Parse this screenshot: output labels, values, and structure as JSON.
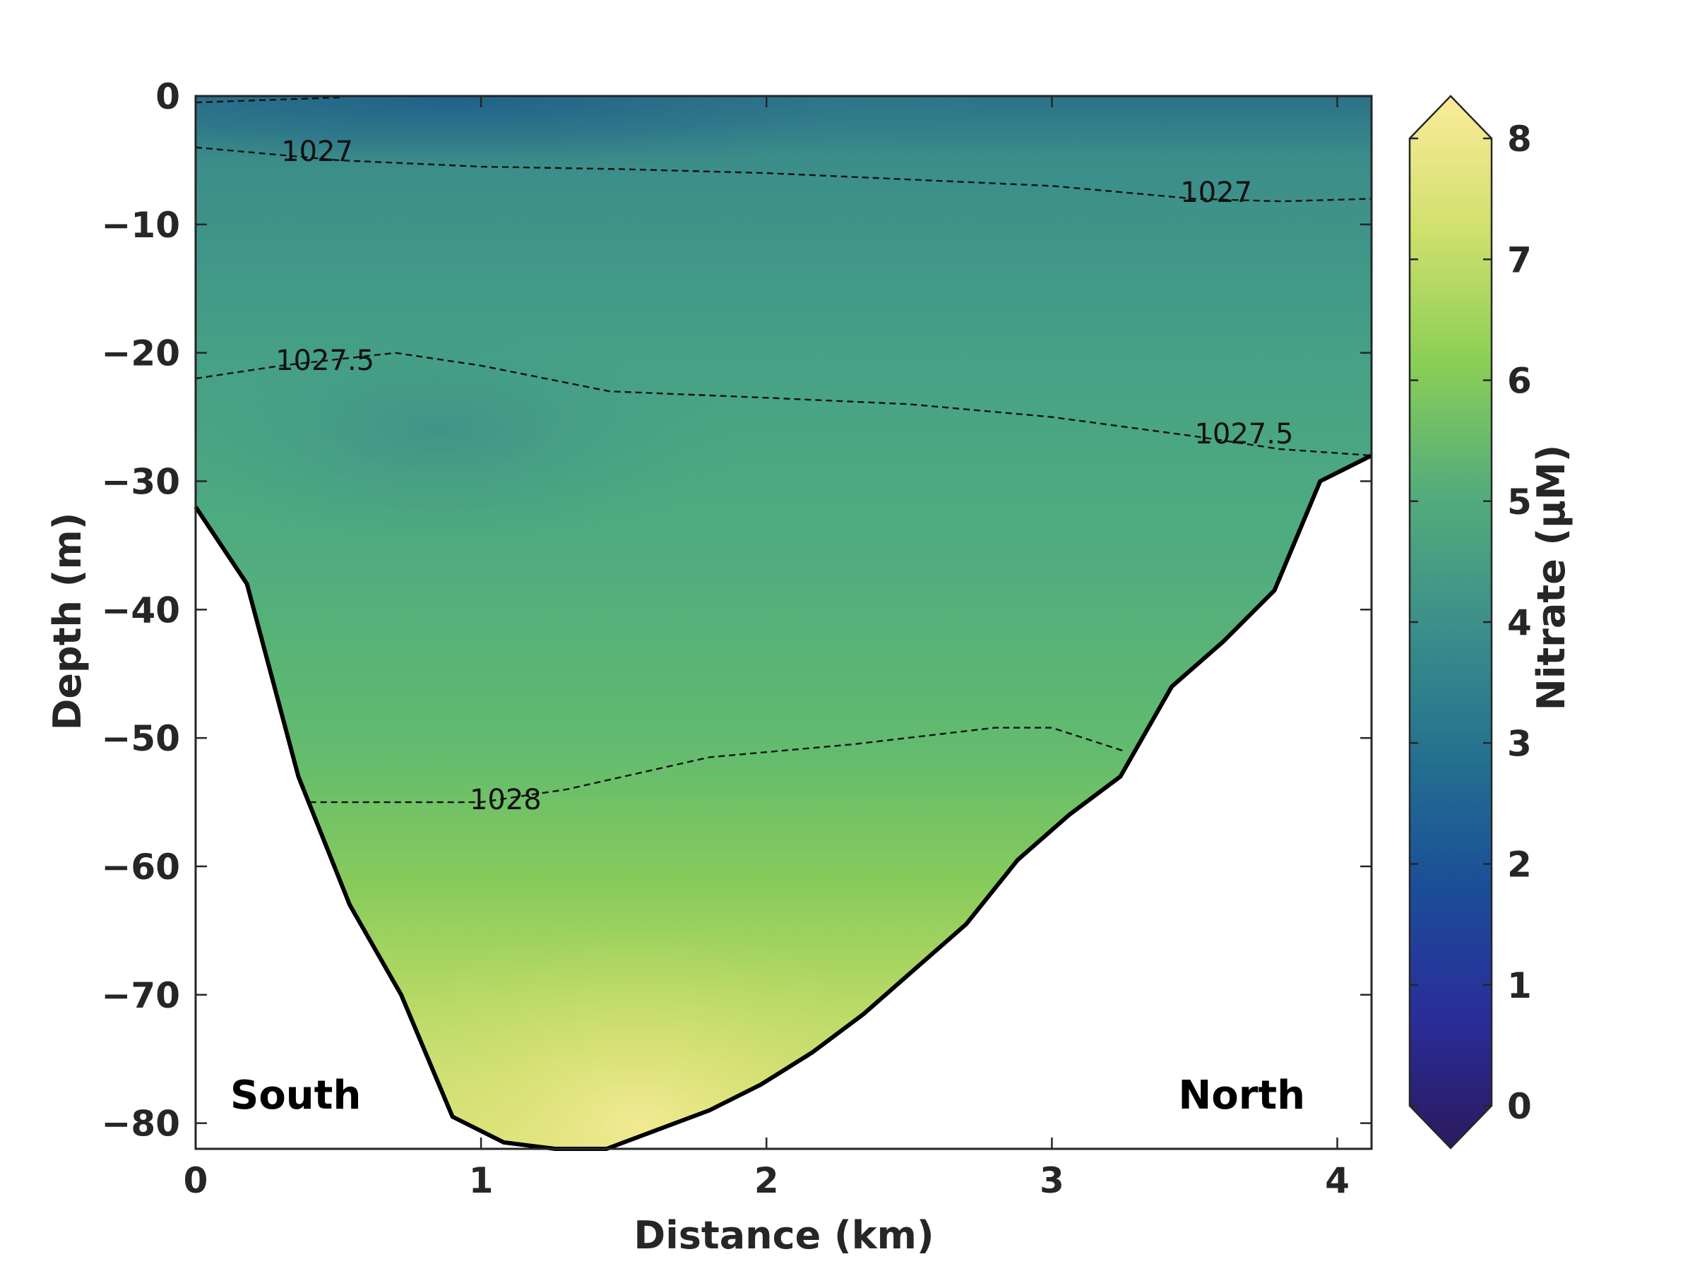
{
  "chart_data": {
    "type": "contour",
    "xlabel": "Distance (km)",
    "ylabel": "Depth (m)",
    "colorbar_label": "Nitrate (μM)",
    "xlim": [
      0,
      4.12
    ],
    "ylim": [
      -82,
      0
    ],
    "x_ticks": [
      0,
      1,
      2,
      3,
      4
    ],
    "y_ticks": [
      0,
      -10,
      -20,
      -30,
      -40,
      -50,
      -60,
      -70,
      -80
    ],
    "colorbar": {
      "range": [
        0,
        8
      ],
      "ticks": [
        0,
        1,
        2,
        3,
        4,
        5,
        6,
        7,
        8
      ],
      "extend": "both",
      "colormap": [
        "#2b1a5e",
        "#2a2d9a",
        "#1b4e98",
        "#24728f",
        "#3c908a",
        "#54ad7a",
        "#8ccf56",
        "#d1e06d",
        "#fbeb9b"
      ]
    },
    "bottom_profile": {
      "x": [
        0,
        0.18,
        0.36,
        0.54,
        0.72,
        0.9,
        1.08,
        1.26,
        1.44,
        1.62,
        1.8,
        1.98,
        2.16,
        2.34,
        2.52,
        2.7,
        2.88,
        3.06,
        3.24,
        3.42,
        3.6,
        3.78,
        3.94,
        4.12
      ],
      "depth": [
        -32,
        -38,
        -53,
        -63,
        -70,
        -79.5,
        -81.5,
        -82,
        -82,
        -80.5,
        -79,
        -77,
        -74.5,
        -71.5,
        -68,
        -64.5,
        -59.5,
        -56,
        -53,
        -46,
        -42.5,
        -38.5,
        -30,
        -28
      ]
    },
    "nitrate_field_description_points": [
      {
        "x": 0.3,
        "depth": -2,
        "value": 2.8
      },
      {
        "x": 2.0,
        "depth": -2,
        "value": 3.0
      },
      {
        "x": 4.0,
        "depth": -5,
        "value": 3.8
      },
      {
        "x": 1.0,
        "depth": -25,
        "value": 3.9
      },
      {
        "x": 2.5,
        "depth": -30,
        "value": 4.6
      },
      {
        "x": 2.3,
        "depth": -60,
        "value": 6.0
      },
      {
        "x": 1.5,
        "depth": -78,
        "value": 7.5
      }
    ],
    "density_contours": [
      {
        "level": "1027",
        "x": [
          0,
          0.5,
          1.0,
          1.5,
          2.0,
          2.5,
          3.0,
          3.5,
          3.8,
          4.12
        ],
        "depth": [
          -4,
          -5,
          -5.5,
          -5.7,
          -6,
          -6.5,
          -7,
          -8,
          -8.2,
          -8
        ]
      },
      {
        "level": "1027.5",
        "x": [
          0,
          0.3,
          0.7,
          1.0,
          1.45,
          2.0,
          2.5,
          3.0,
          3.5,
          3.8,
          4.12
        ],
        "depth": [
          -22,
          -21,
          -20,
          -21,
          -23,
          -23.5,
          -24,
          -25,
          -26.5,
          -27.5,
          -28
        ]
      },
      {
        "level": "1028",
        "x": [
          0.4,
          1.0,
          1.3,
          1.8,
          2.3,
          2.8,
          3.0,
          3.25
        ],
        "depth": [
          -55,
          -55,
          -54,
          -51.5,
          -50.5,
          -49.2,
          -49.2,
          -51
        ]
      }
    ],
    "surface_contour_fragment": {
      "x": [
        0,
        0.52
      ],
      "depth": [
        -0.5,
        -0.1
      ]
    },
    "contour_labels": [
      {
        "text": "1027",
        "x": 0.3,
        "depth": -4.5
      },
      {
        "text": "1027",
        "x": 3.45,
        "depth": -7.7
      },
      {
        "text": "1027.5",
        "x": 0.28,
        "depth": -20.8
      },
      {
        "text": "1027.5",
        "x": 3.5,
        "depth": -26.5
      },
      {
        "text": "1028",
        "x": 0.96,
        "depth": -55
      }
    ],
    "annotations": [
      "South",
      "North"
    ]
  }
}
